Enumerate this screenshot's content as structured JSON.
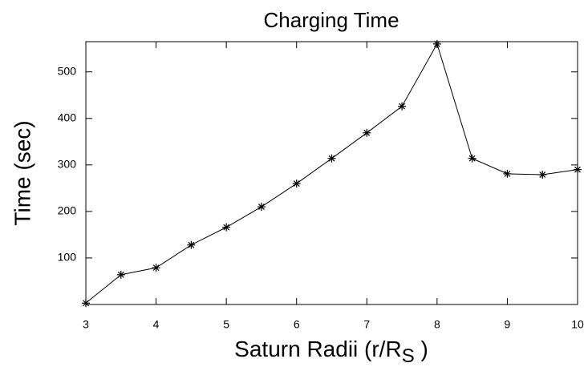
{
  "chart_data": {
    "type": "line",
    "title": "Charging Time",
    "xlabel": [
      "Saturn Radii (r/R",
      "S",
      " )"
    ],
    "ylabel": "Time (sec)",
    "x": [
      3,
      3.5,
      4,
      4.5,
      5,
      5.5,
      6,
      6.5,
      7,
      7.5,
      8,
      8.5,
      9,
      9.5,
      10
    ],
    "series": [
      {
        "color": "#000000",
        "values": [
          3,
          64,
          79,
          128,
          166,
          210,
          260,
          314,
          369,
          426,
          560,
          314,
          281,
          279,
          290
        ]
      }
    ],
    "xlim": [
      3,
      10
    ],
    "xticks": [
      3,
      4,
      5,
      6,
      7,
      8,
      9,
      10
    ],
    "ylim": [
      0,
      565
    ],
    "yticks": [
      100,
      200,
      300,
      400,
      500
    ]
  }
}
